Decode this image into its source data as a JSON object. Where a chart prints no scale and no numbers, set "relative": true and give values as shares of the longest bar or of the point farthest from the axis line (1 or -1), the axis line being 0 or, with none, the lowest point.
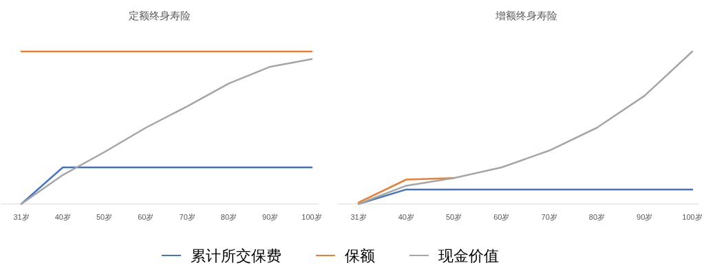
{
  "chart_data": [
    {
      "type": "line",
      "title": "定额终身寿险",
      "relative": true,
      "legend": "bottom",
      "categories": [
        "31岁",
        "40岁",
        "50岁",
        "60岁",
        "70岁",
        "80岁",
        "90岁",
        "100岁"
      ],
      "series": [
        {
          "name": "累计所交保费",
          "color": "#4472c4",
          "values": [
            0,
            0.24,
            0.24,
            0.24,
            0.24,
            0.24,
            0.24,
            0.24
          ]
        },
        {
          "name": "保额",
          "color": "#ed7d31",
          "values": [
            1,
            1,
            1,
            1,
            1,
            1,
            1,
            1
          ]
        },
        {
          "name": "现金价值",
          "color": "#a5a5a5",
          "values": [
            0,
            0.19,
            0.34,
            0.5,
            0.64,
            0.79,
            0.9,
            0.95
          ]
        }
      ]
    },
    {
      "type": "line",
      "title": "增额终身寿险",
      "relative": true,
      "categories": [
        "31岁",
        "40岁",
        "50岁",
        "60岁",
        "70岁",
        "80岁",
        "90岁",
        "100岁"
      ],
      "series": [
        {
          "color": "#4472c4",
          "values": [
            0,
            0.095,
            0.095,
            0.095,
            0.095,
            0.095,
            0.095,
            0.095
          ]
        },
        {
          "color": "#ed7d31",
          "values": [
            0.01,
            0.16,
            0.17,
            null,
            null,
            null,
            null,
            null
          ]
        },
        {
          "color": "#a5a5a5",
          "values": [
            0,
            0.12,
            0.17,
            0.24,
            0.35,
            0.5,
            0.71,
            1
          ]
        }
      ]
    }
  ]
}
